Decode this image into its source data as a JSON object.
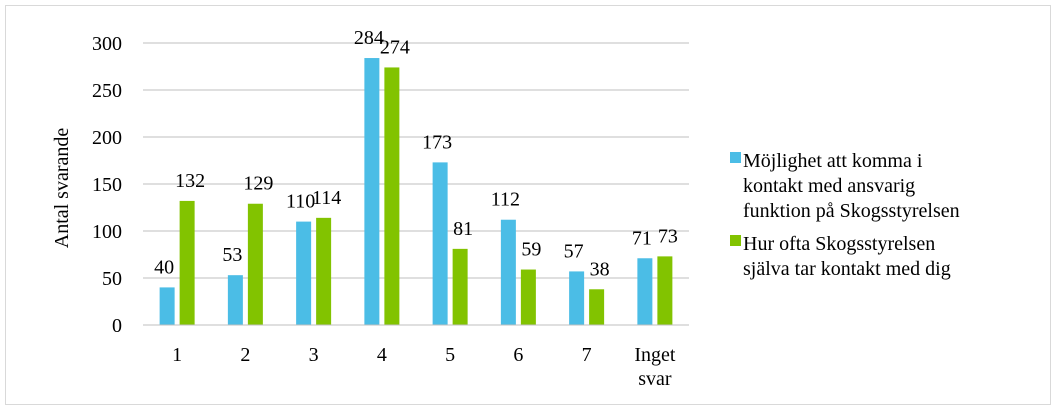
{
  "chart_data": {
    "type": "bar",
    "ylabel": "Antal svarande",
    "xlabel": "",
    "ylim": [
      0,
      300
    ],
    "yticks": [
      0,
      50,
      100,
      150,
      200,
      250,
      300
    ],
    "grid": true,
    "legend_position": "right",
    "categories": [
      [
        "1"
      ],
      [
        "2"
      ],
      [
        "3"
      ],
      [
        "4"
      ],
      [
        "5"
      ],
      [
        "6"
      ],
      [
        "7"
      ],
      [
        "Inget",
        "svar"
      ]
    ],
    "series": [
      {
        "name": "Möjlighet att komma i kontakt med ansvarig funktion på Skogsstyrelsen",
        "legend_lines": [
          "Möjlighet att komma i",
          "kontakt med ansvarig",
          "funktion på Skogsstyrelsen"
        ],
        "color": "#4bbde6",
        "values": [
          40,
          53,
          110,
          284,
          173,
          112,
          57,
          71
        ]
      },
      {
        "name": "Hur ofta Skogsstyrelsen själva tar kontakt med dig",
        "legend_lines": [
          "Hur ofta Skogsstyrelsen",
          "själva tar kontakt med dig"
        ],
        "color": "#82c300",
        "values": [
          132,
          129,
          114,
          274,
          81,
          59,
          38,
          73
        ]
      }
    ]
  }
}
